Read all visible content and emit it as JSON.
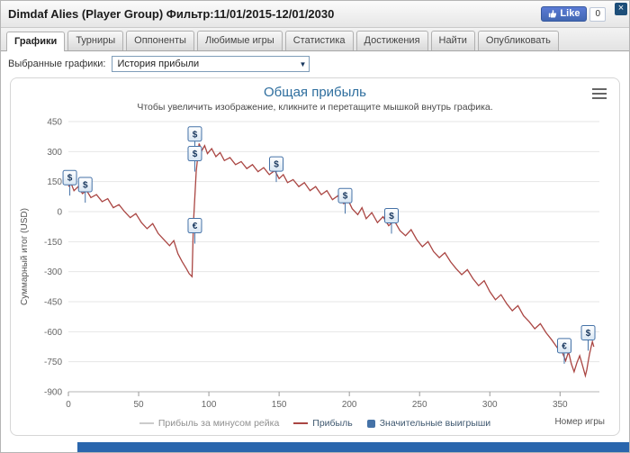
{
  "window": {
    "close_label": "×"
  },
  "header": {
    "title": "Dimdaf Alies (Player Group) Фильтр:11/01/2015-12/01/2030",
    "facebook": {
      "like_label": "Like",
      "count": "0"
    }
  },
  "tabs": {
    "items": [
      {
        "label": "Графики",
        "active": true
      },
      {
        "label": "Турниры",
        "active": false
      },
      {
        "label": "Оппоненты",
        "active": false
      },
      {
        "label": "Любимые игры",
        "active": false
      },
      {
        "label": "Статистика",
        "active": false
      },
      {
        "label": "Достижения",
        "active": false
      },
      {
        "label": "Найти",
        "active": false
      },
      {
        "label": "Опубликовать",
        "active": false
      }
    ]
  },
  "controls": {
    "select_label": "Выбранные графики:",
    "selected_option": "История прибыли",
    "dropdown_arrow": "▼"
  },
  "colors": {
    "title_blue": "#2E6E9E",
    "line_red": "#AA4643",
    "flag_blue": "#4572A7",
    "footer_blue": "#2a66ad"
  },
  "chart_data": {
    "type": "line",
    "title": "Общая прибыль",
    "subtitle": "Чтобы увеличить изображение, кликните и перетащите мышкой внутрь графика.",
    "xlabel": "Номер игры",
    "ylabel": "Суммарный итог (USD)",
    "ylim": [
      -900,
      450
    ],
    "ytick_step": 150,
    "xlim": [
      0,
      378
    ],
    "xticks": [
      0,
      50,
      100,
      150,
      200,
      250,
      300,
      350
    ],
    "grid": "horizontal",
    "legend": [
      {
        "label": "Прибыль за минусом рейка",
        "type": "line",
        "color": "#CCCCCC",
        "disabled": true
      },
      {
        "label": "Прибыль",
        "type": "line",
        "color": "#AA4643",
        "disabled": false
      },
      {
        "label": "Значительные выигрыши",
        "type": "square",
        "color": "#4572A7",
        "disabled": false
      }
    ],
    "series": [
      {
        "name": "Прибыль",
        "color": "#AA4643",
        "points": [
          [
            0,
            125
          ],
          [
            2,
            140
          ],
          [
            4,
            105
          ],
          [
            7,
            125
          ],
          [
            10,
            90
          ],
          [
            13,
            105
          ],
          [
            16,
            70
          ],
          [
            20,
            85
          ],
          [
            24,
            50
          ],
          [
            28,
            65
          ],
          [
            32,
            20
          ],
          [
            36,
            35
          ],
          [
            40,
            0
          ],
          [
            44,
            -30
          ],
          [
            48,
            -10
          ],
          [
            52,
            -55
          ],
          [
            56,
            -85
          ],
          [
            60,
            -60
          ],
          [
            64,
            -110
          ],
          [
            68,
            -140
          ],
          [
            72,
            -170
          ],
          [
            75,
            -145
          ],
          [
            78,
            -210
          ],
          [
            81,
            -250
          ],
          [
            84,
            -285
          ],
          [
            86,
            -310
          ],
          [
            88,
            -325
          ],
          [
            89,
            -60
          ],
          [
            91,
            200
          ],
          [
            93,
            340
          ],
          [
            95,
            305
          ],
          [
            97,
            330
          ],
          [
            99,
            290
          ],
          [
            102,
            315
          ],
          [
            105,
            275
          ],
          [
            108,
            295
          ],
          [
            111,
            255
          ],
          [
            115,
            270
          ],
          [
            119,
            235
          ],
          [
            123,
            250
          ],
          [
            127,
            215
          ],
          [
            131,
            235
          ],
          [
            135,
            200
          ],
          [
            139,
            220
          ],
          [
            143,
            185
          ],
          [
            147,
            205
          ],
          [
            150,
            165
          ],
          [
            153,
            185
          ],
          [
            156,
            145
          ],
          [
            160,
            160
          ],
          [
            164,
            125
          ],
          [
            168,
            145
          ],
          [
            172,
            105
          ],
          [
            176,
            125
          ],
          [
            180,
            85
          ],
          [
            184,
            105
          ],
          [
            188,
            60
          ],
          [
            192,
            80
          ],
          [
            196,
            40
          ],
          [
            199,
            60
          ],
          [
            202,
            15
          ],
          [
            206,
            -15
          ],
          [
            209,
            20
          ],
          [
            212,
            -35
          ],
          [
            216,
            -5
          ],
          [
            220,
            -55
          ],
          [
            224,
            -25
          ],
          [
            228,
            -70
          ],
          [
            232,
            -45
          ],
          [
            236,
            -95
          ],
          [
            240,
            -120
          ],
          [
            244,
            -90
          ],
          [
            248,
            -140
          ],
          [
            252,
            -175
          ],
          [
            256,
            -150
          ],
          [
            260,
            -200
          ],
          [
            264,
            -230
          ],
          [
            268,
            -205
          ],
          [
            272,
            -250
          ],
          [
            276,
            -285
          ],
          [
            280,
            -315
          ],
          [
            284,
            -290
          ],
          [
            288,
            -335
          ],
          [
            292,
            -370
          ],
          [
            296,
            -345
          ],
          [
            300,
            -400
          ],
          [
            304,
            -440
          ],
          [
            308,
            -415
          ],
          [
            312,
            -460
          ],
          [
            316,
            -495
          ],
          [
            320,
            -470
          ],
          [
            324,
            -520
          ],
          [
            328,
            -550
          ],
          [
            332,
            -585
          ],
          [
            336,
            -560
          ],
          [
            340,
            -605
          ],
          [
            344,
            -640
          ],
          [
            348,
            -680
          ],
          [
            350,
            -660
          ],
          [
            352,
            -710
          ],
          [
            354,
            -745
          ],
          [
            356,
            -700
          ],
          [
            358,
            -760
          ],
          [
            360,
            -800
          ],
          [
            362,
            -755
          ],
          [
            364,
            -720
          ],
          [
            366,
            -770
          ],
          [
            368,
            -820
          ],
          [
            369,
            -790
          ],
          [
            370,
            -750
          ],
          [
            371,
            -710
          ],
          [
            372,
            -680
          ],
          [
            373,
            -650
          ],
          [
            374,
            -675
          ]
        ]
      }
    ],
    "flags": [
      {
        "x": 1,
        "y": 170,
        "label": "$"
      },
      {
        "x": 12,
        "y": 135,
        "label": "$"
      },
      {
        "x": 90,
        "y": 388,
        "label": "$"
      },
      {
        "x": 90,
        "y": 290,
        "label": "$"
      },
      {
        "x": 90,
        "y": -70,
        "label": "€"
      },
      {
        "x": 148,
        "y": 238,
        "label": "$"
      },
      {
        "x": 197,
        "y": 80,
        "label": "$"
      },
      {
        "x": 230,
        "y": -20,
        "label": "$"
      },
      {
        "x": 353,
        "y": -670,
        "label": "€"
      },
      {
        "x": 370,
        "y": -605,
        "label": "$"
      }
    ]
  }
}
